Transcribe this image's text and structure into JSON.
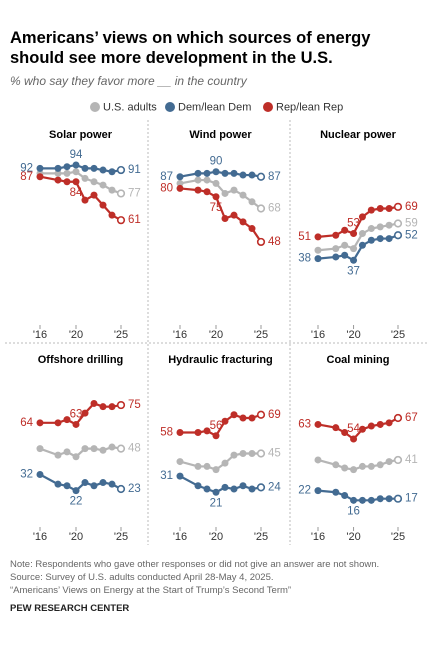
{
  "title": "Americans’ views on which sources of energy should see more development in the U.S.",
  "subtitle": "% who say they favor more __ in the country",
  "notes": [
    "Note: Respondents who gave other responses or did not give an answer are not shown.",
    "Source: Survey of U.S. adults conducted April 28-May 4, 2025.",
    "“Americans’ Views on Energy at the Start of Trump’s Second Term”"
  ],
  "credit": "PEW RESEARCH CENTER",
  "chart_data": [
    {
      "type": "line",
      "title": "Solar power",
      "x": [
        2016,
        2018,
        2019,
        2020,
        2021,
        2022,
        2023,
        2024,
        2025
      ],
      "xlim": [
        2016,
        2025
      ],
      "ylim": [
        30,
        100
      ],
      "xticks": [
        {
          "value": 2016,
          "label": "'16"
        },
        {
          "value": 2020,
          "label": "'20"
        },
        {
          "value": 2025,
          "label": "'25"
        }
      ],
      "series": [
        {
          "name": "U.S. adults",
          "color": "#b5b5b5",
          "values": [
            89,
            89,
            89,
            90,
            86,
            84,
            82,
            79,
            77
          ]
        },
        {
          "name": "Dem/lean Dem",
          "color": "#436b92",
          "values": [
            92,
            92,
            93,
            94,
            92,
            92,
            91,
            90,
            91
          ]
        },
        {
          "name": "Rep/lean Rep",
          "color": "#be2e28",
          "values": [
            87,
            85,
            84,
            84,
            73,
            76,
            70,
            64,
            61
          ]
        }
      ]
    },
    {
      "type": "line",
      "title": "Wind power",
      "x": [
        2016,
        2018,
        2019,
        2020,
        2021,
        2022,
        2023,
        2024,
        2025
      ],
      "xlim": [
        2016,
        2025
      ],
      "ylim": [
        30,
        100
      ],
      "xticks": [
        {
          "value": 2016,
          "label": "'16"
        },
        {
          "value": 2020,
          "label": "'20"
        },
        {
          "value": 2025,
          "label": "'25"
        }
      ],
      "series": [
        {
          "name": "U.S. adults",
          "color": "#b5b5b5",
          "values": [
            83,
            85,
            85,
            83,
            77,
            79,
            76,
            72,
            68
          ]
        },
        {
          "name": "Dem/lean Dem",
          "color": "#436b92",
          "values": [
            87,
            89,
            89,
            90,
            89,
            89,
            88,
            88,
            87
          ]
        },
        {
          "name": "Rep/lean Rep",
          "color": "#be2e28",
          "values": [
            80,
            79,
            78,
            75,
            62,
            64,
            60,
            56,
            48
          ]
        }
      ]
    },
    {
      "type": "line",
      "title": "Nuclear power",
      "x": [
        2016,
        2018,
        2019,
        2020,
        2021,
        2022,
        2023,
        2024,
        2025
      ],
      "xlim": [
        2016,
        2025
      ],
      "ylim": [
        30,
        100
      ],
      "xticks": [
        {
          "value": 2016,
          "label": "'16"
        },
        {
          "value": 2020,
          "label": "'20"
        },
        {
          "value": 2025,
          "label": "'25"
        }
      ],
      "series": [
        {
          "name": "U.S. adults",
          "color": "#b5b5b5",
          "values": [
            43,
            44,
            46,
            44,
            53,
            56,
            57,
            58,
            59
          ]
        },
        {
          "name": "Dem/lean Dem",
          "color": "#436b92",
          "values": [
            38,
            39,
            40,
            37,
            46,
            49,
            50,
            50,
            52
          ]
        },
        {
          "name": "Rep/lean Rep",
          "color": "#be2e28",
          "values": [
            51,
            52,
            55,
            53,
            63,
            67,
            68,
            68,
            69
          ]
        }
      ]
    },
    {
      "type": "line",
      "title": "Offshore drilling",
      "x": [
        2016,
        2018,
        2019,
        2020,
        2021,
        2022,
        2023,
        2024,
        2025
      ],
      "xlim": [
        2016,
        2025
      ],
      "ylim": [
        10,
        80
      ],
      "xticks": [
        {
          "value": 2016,
          "label": "'16"
        },
        {
          "value": 2020,
          "label": "'20"
        },
        {
          "value": 2025,
          "label": "'25"
        }
      ],
      "series": [
        {
          "name": "U.S. adults",
          "color": "#b5b5b5",
          "values": [
            48,
            44,
            46,
            43,
            48,
            48,
            47,
            49,
            48
          ]
        },
        {
          "name": "Dem/lean Dem",
          "color": "#436b92",
          "values": [
            32,
            26,
            25,
            22,
            27,
            25,
            27,
            26,
            23
          ]
        },
        {
          "name": "Rep/lean Rep",
          "color": "#be2e28",
          "values": [
            64,
            64,
            66,
            63,
            70,
            76,
            74,
            74,
            75
          ]
        }
      ]
    },
    {
      "type": "line",
      "title": "Hydraulic fracturing",
      "x": [
        2016,
        2018,
        2019,
        2020,
        2021,
        2022,
        2023,
        2024,
        2025
      ],
      "xlim": [
        2016,
        2025
      ],
      "ylim": [
        10,
        80
      ],
      "xticks": [
        {
          "value": 2016,
          "label": "'16"
        },
        {
          "value": 2020,
          "label": "'20"
        },
        {
          "value": 2025,
          "label": "'25"
        }
      ],
      "series": [
        {
          "name": "U.S. adults",
          "color": "#b5b5b5",
          "values": [
            40,
            37,
            37,
            35,
            39,
            44,
            45,
            45,
            45
          ]
        },
        {
          "name": "Dem/lean Dem",
          "color": "#436b92",
          "values": [
            31,
            25,
            23,
            21,
            24,
            23,
            25,
            23,
            24
          ]
        },
        {
          "name": "Rep/lean Rep",
          "color": "#be2e28",
          "values": [
            58,
            58,
            59,
            56,
            65,
            69,
            67,
            67,
            69
          ]
        }
      ]
    },
    {
      "type": "line",
      "title": "Coal mining",
      "x": [
        2016,
        2018,
        2019,
        2020,
        2021,
        2022,
        2023,
        2024,
        2025
      ],
      "xlim": [
        2016,
        2025
      ],
      "ylim": [
        10,
        80
      ],
      "xticks": [
        {
          "value": 2016,
          "label": "'16"
        },
        {
          "value": 2020,
          "label": "'20"
        },
        {
          "value": 2025,
          "label": "'25"
        }
      ],
      "series": [
        {
          "name": "U.S. adults",
          "color": "#b5b5b5",
          "values": [
            41,
            38,
            36,
            35,
            37,
            37,
            38,
            40,
            41
          ]
        },
        {
          "name": "Dem/lean Dem",
          "color": "#436b92",
          "values": [
            22,
            21,
            19,
            16,
            16,
            16,
            17,
            17,
            17
          ]
        },
        {
          "name": "Rep/lean Rep",
          "color": "#be2e28",
          "values": [
            63,
            61,
            58,
            54,
            60,
            62,
            63,
            64,
            67
          ]
        }
      ]
    }
  ]
}
